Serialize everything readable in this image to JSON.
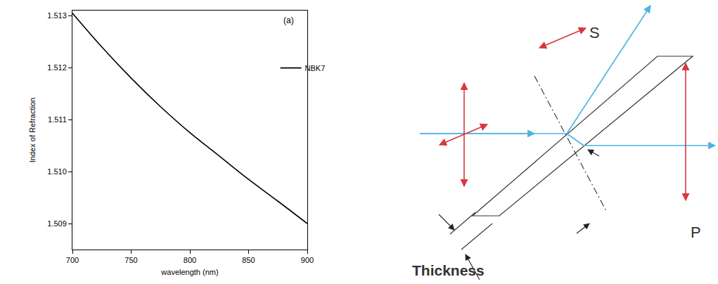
{
  "chart_data": {
    "type": "line",
    "x_label": "wavelength (nm)",
    "y_label": "Index of Refraction",
    "annotations": [
      "(a)"
    ],
    "x": [
      700,
      725,
      750,
      775,
      800,
      825,
      850,
      875,
      900
    ],
    "series": [
      {
        "name": "NBK7",
        "color": "#000000",
        "values": [
          1.51305,
          1.5124,
          1.5118,
          1.51125,
          1.51075,
          1.5103,
          1.50985,
          1.50943,
          1.509
        ]
      }
    ],
    "xlim": [
      700,
      900
    ],
    "xticks": [
      700,
      750,
      800,
      850,
      900
    ],
    "ylim": [
      1.5085,
      1.5131
    ],
    "yticks": [
      1.509,
      {
        "value": 1.51,
        "label": "1.510"
      },
      1.511,
      1.512,
      1.513
    ],
    "legend": "upper right",
    "grid": false
  },
  "diagram": {
    "labels": {
      "s": "S",
      "p": "P",
      "thickness": "Thickness"
    }
  }
}
